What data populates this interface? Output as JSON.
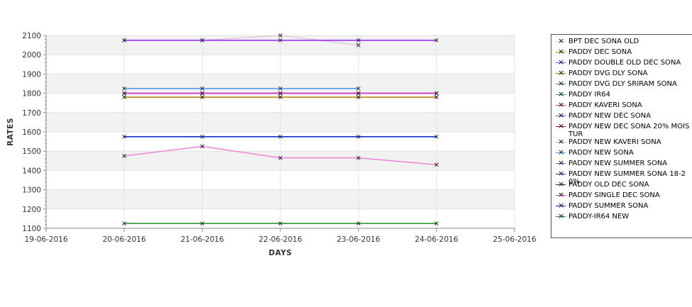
{
  "chart_data": {
    "type": "line",
    "xlabel": "DAYS",
    "ylabel": "RATES",
    "x_ticks": [
      "19-06-2016",
      "20-06-2016",
      "21-06-2016",
      "22-06-2016",
      "23-06-2016",
      "24-06-2016",
      "25-06-2016"
    ],
    "xlim": [
      "19-06-2016",
      "25-06-2016"
    ],
    "ylim": [
      1100,
      2100
    ],
    "y_ticks": [
      1100,
      1200,
      1300,
      1400,
      1500,
      1600,
      1700,
      1800,
      1900,
      2000,
      2100
    ],
    "grid": true,
    "legend_position": "right",
    "series": [
      {
        "name": "BPT DEC SONA OLD",
        "color": "#e8c8e0",
        "x": [
          "20-06-2016",
          "21-06-2016",
          "22-06-2016",
          "23-06-2016"
        ],
        "values": [
          2075,
          2075,
          2100,
          2050
        ]
      },
      {
        "name": "PADDY DEC SONA",
        "color": "#b8860b",
        "x": [
          "20-06-2016",
          "21-06-2016",
          "22-06-2016",
          "23-06-2016",
          "24-06-2016"
        ],
        "values": [
          1780,
          1780,
          1780,
          1780,
          1780
        ]
      },
      {
        "name": "PADDY DOUBLE OLD DEC SONA",
        "color": "#9933ff",
        "x": [
          "20-06-2016",
          "21-06-2016",
          "22-06-2016",
          "23-06-2016",
          "24-06-2016"
        ],
        "values": [
          2075,
          2075,
          2075,
          2075,
          2075
        ]
      },
      {
        "name": "PADDY DVG DLY SONA",
        "color": "#669900",
        "x": [],
        "values": []
      },
      {
        "name": "PADDY DVG DLY SRIRAM SONA",
        "color": "#339933",
        "x": [
          "20-06-2016",
          "21-06-2016",
          "22-06-2016",
          "23-06-2016",
          "24-06-2016"
        ],
        "values": [
          1125,
          1125,
          1125,
          1125,
          1125
        ]
      },
      {
        "name": "PADDY IR64",
        "color": "#339999",
        "x": [],
        "values": []
      },
      {
        "name": "PADDY KAVERI SONA",
        "color": "#cc3399",
        "x": [
          "20-06-2016",
          "21-06-2016",
          "22-06-2016",
          "23-06-2016",
          "24-06-2016"
        ],
        "values": [
          1800,
          1800,
          1800,
          1800,
          1800
        ]
      },
      {
        "name": "PADDY NEW DEC SONA",
        "color": "#3366cc",
        "x": [],
        "values": []
      },
      {
        "name": "PADDY NEW DEC SONA 20% MOISTUR",
        "color": "#cc0033",
        "x": [],
        "values": []
      },
      {
        "name": "PADDY NEW KAVERI SONA",
        "color": "#ee88dd",
        "x": [
          "20-06-2016",
          "21-06-2016",
          "22-06-2016",
          "23-06-2016",
          "24-06-2016"
        ],
        "values": [
          1475,
          1525,
          1465,
          1465,
          1430
        ]
      },
      {
        "name": "PADDY NEW SONA",
        "color": "#5599ee",
        "x": [
          "20-06-2016",
          "21-06-2016",
          "22-06-2016",
          "23-06-2016"
        ],
        "values": [
          1825,
          1825,
          1825,
          1825
        ]
      },
      {
        "name": "PADDY NEW SUMMER SONA",
        "color": "#6666cc",
        "x": [],
        "values": []
      },
      {
        "name": "PADDY NEW SUMMER SONA 18-20%",
        "color": "#3333aa",
        "x": [],
        "values": []
      },
      {
        "name": "PADDY OLD DEC SONA",
        "color": "#333333",
        "x": [],
        "values": []
      },
      {
        "name": "PADDY SINGLE DEC SONA",
        "color": "#cc33cc",
        "x": [
          "20-06-2016",
          "21-06-2016",
          "22-06-2016",
          "23-06-2016",
          "24-06-2016"
        ],
        "values": [
          1800,
          1800,
          1800,
          1800,
          1800
        ]
      },
      {
        "name": "PADDY SUMMER SONA",
        "color": "#1133cc",
        "x": [
          "20-06-2016",
          "21-06-2016",
          "22-06-2016",
          "23-06-2016",
          "24-06-2016"
        ],
        "values": [
          1575,
          1575,
          1575,
          1575,
          1575
        ]
      },
      {
        "name": "PADDY-IR64 NEW",
        "color": "#228822",
        "x": [],
        "values": []
      }
    ]
  }
}
